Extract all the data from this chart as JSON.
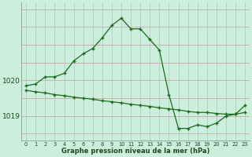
{
  "curve_x": [
    0,
    1,
    2,
    3,
    4,
    5,
    6,
    7,
    8,
    9,
    10,
    11,
    12,
    13,
    14,
    15,
    16,
    17,
    18,
    19,
    20,
    21,
    22,
    23
  ],
  "curve_y": [
    1019.85,
    1019.9,
    1020.1,
    1020.1,
    1020.2,
    1020.55,
    1020.75,
    1020.9,
    1021.2,
    1021.55,
    1021.75,
    1021.45,
    1021.45,
    1021.15,
    1020.85,
    1019.6,
    1018.65,
    1018.65,
    1018.75,
    1018.7,
    1018.8,
    1019.0,
    1019.05,
    1019.3
  ],
  "straight_x": [
    0,
    1,
    2,
    3,
    4,
    5,
    6,
    7,
    8,
    9,
    10,
    11,
    12,
    13,
    14,
    15,
    16,
    17,
    18,
    19,
    20,
    21,
    22,
    23
  ],
  "straight_y": [
    1019.72,
    1019.68,
    1019.65,
    1019.6,
    1019.57,
    1019.53,
    1019.5,
    1019.47,
    1019.43,
    1019.4,
    1019.37,
    1019.33,
    1019.3,
    1019.27,
    1019.23,
    1019.2,
    1019.17,
    1019.13,
    1019.1,
    1019.1,
    1019.07,
    1019.05,
    1019.05,
    1019.1
  ],
  "line_color": "#1a6b1a",
  "bg_color": "#cceedd",
  "grid_color_v": "#b0d0c0",
  "grid_color_h": "#cc9999",
  "xlabel": "Graphe pression niveau de la mer (hPa)",
  "xlim": [
    -0.5,
    23.5
  ],
  "ylim": [
    1018.3,
    1022.2
  ],
  "yticks": [
    1019,
    1020
  ],
  "xticks": [
    0,
    1,
    2,
    3,
    4,
    5,
    6,
    7,
    8,
    9,
    10,
    11,
    12,
    13,
    14,
    15,
    16,
    17,
    18,
    19,
    20,
    21,
    22,
    23
  ]
}
